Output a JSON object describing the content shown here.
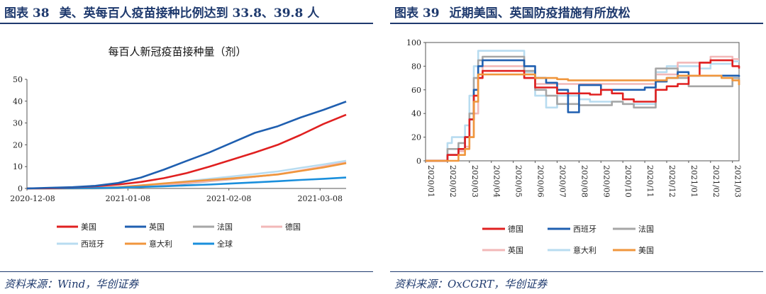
{
  "left": {
    "figure_label": "图表 38",
    "figure_title": "美、英每百人疫苗接种比例达到 33.8、39.8 人",
    "source": "资料来源：Wind，华创证券"
  },
  "right": {
    "figure_label": "图表 39",
    "figure_title": "近期美国、英国防疫措施有所放松",
    "source": "资料来源：OxCGRT，华创证券"
  },
  "chart_data": [
    {
      "type": "line",
      "title": "每百人新冠疫苗接种量（剂）",
      "xlabel": "",
      "ylabel": "",
      "x_ticks": [
        "2020-12-08",
        "2021-01-08",
        "2021-02-08",
        "2021-03-08"
      ],
      "x": [
        "2020-12-08",
        "2020-12-15",
        "2020-12-22",
        "2020-12-29",
        "2021-01-05",
        "2021-01-12",
        "2021-01-19",
        "2021-01-26",
        "2021-02-02",
        "2021-02-09",
        "2021-02-16",
        "2021-02-23",
        "2021-03-02",
        "2021-03-09",
        "2021-03-16"
      ],
      "ylim": [
        0,
        50
      ],
      "y_ticks": [
        0,
        10,
        20,
        30,
        40,
        50
      ],
      "legend": "bottom",
      "grid": false,
      "series": [
        {
          "name": "美国",
          "color": "#e02020",
          "values": [
            0.0,
            0.1,
            0.5,
            1.0,
            1.8,
            3.0,
            4.7,
            7.0,
            10.0,
            13.2,
            16.5,
            20.0,
            24.5,
            29.5,
            33.8
          ]
        },
        {
          "name": "英国",
          "color": "#1f5fb0",
          "values": [
            0.0,
            0.3,
            0.6,
            1.2,
            2.5,
            5.0,
            8.6,
            12.6,
            16.5,
            21.0,
            25.5,
            28.5,
            32.5,
            36.0,
            39.8
          ]
        },
        {
          "name": "法国",
          "color": "#a6a6a6",
          "values": [
            0.0,
            0.0,
            0.0,
            0.0,
            0.1,
            0.6,
            1.3,
            2.3,
            3.3,
            4.3,
            5.4,
            6.5,
            8.1,
            9.7,
            11.8
          ]
        },
        {
          "name": "德国",
          "color": "#f2b8b8",
          "values": [
            0.0,
            0.0,
            0.0,
            0.3,
            0.6,
            1.1,
            1.7,
            2.5,
            3.4,
            4.4,
            5.4,
            6.5,
            8.2,
            10.1,
            12.2
          ]
        },
        {
          "name": "西班牙",
          "color": "#b8dcf0",
          "values": [
            0.0,
            0.0,
            0.0,
            0.2,
            0.5,
            1.2,
            2.2,
            3.3,
            4.4,
            5.5,
            6.6,
            7.8,
            9.4,
            11.0,
            12.7
          ]
        },
        {
          "name": "意大利",
          "color": "#f0963c",
          "values": [
            0.0,
            0.0,
            0.0,
            0.1,
            0.6,
            1.4,
            2.3,
            3.1,
            3.9,
            4.6,
            5.5,
            6.4,
            8.0,
            9.6,
            11.6
          ]
        },
        {
          "name": "全球",
          "color": "#1a8fdc",
          "values": [
            0.0,
            0.05,
            0.1,
            0.2,
            0.4,
            0.7,
            1.0,
            1.4,
            1.8,
            2.3,
            2.8,
            3.3,
            3.9,
            4.4,
            5.0
          ]
        }
      ]
    },
    {
      "type": "line",
      "title": "",
      "xlabel": "",
      "ylabel": "",
      "step": true,
      "x_ticks": [
        "2020/01",
        "2020/02",
        "2020/03",
        "2020/04",
        "2020/05",
        "2020/06",
        "2020/07",
        "2020/08",
        "2020/09",
        "2020/10",
        "2020/11",
        "2020/12",
        "2021/01",
        "2021/02",
        "2021/03"
      ],
      "x": [
        0,
        0.5,
        1,
        1.2,
        1.5,
        1.8,
        2,
        2.2,
        2.4,
        2.6,
        2.8,
        3,
        3.5,
        4,
        4.5,
        5,
        5.5,
        6,
        6.5,
        7,
        7.5,
        8,
        8.5,
        9,
        9.5,
        10,
        10.5,
        11,
        11.5,
        12,
        12.5,
        13,
        13.5,
        14,
        14.3
      ],
      "ylim": [
        0,
        100
      ],
      "y_ticks": [
        0,
        20,
        40,
        60,
        80,
        100
      ],
      "legend": "bottom",
      "grid": false,
      "series": [
        {
          "name": "德国",
          "color": "#e02020",
          "values": [
            0,
            0,
            5,
            5,
            10,
            20,
            35,
            55,
            70,
            76,
            76,
            76,
            76,
            76,
            70,
            62,
            62,
            57,
            57,
            57,
            56,
            60,
            57,
            52,
            50,
            50,
            60,
            63,
            65,
            72,
            83,
            85,
            85,
            80,
            78
          ]
        },
        {
          "name": "西班牙",
          "color": "#1f5fb0",
          "values": [
            0,
            0,
            5,
            5,
            10,
            20,
            35,
            60,
            80,
            85,
            85,
            85,
            85,
            85,
            80,
            70,
            66,
            60,
            41,
            64,
            64,
            60,
            60,
            60,
            60,
            62,
            67,
            70,
            75,
            72,
            72,
            72,
            72,
            72,
            71
          ]
        },
        {
          "name": "法国",
          "color": "#a6a6a6",
          "values": [
            0,
            0,
            10,
            10,
            15,
            20,
            40,
            70,
            85,
            88,
            88,
            88,
            88,
            88,
            76,
            60,
            55,
            48,
            48,
            47,
            47,
            47,
            50,
            48,
            45,
            45,
            78,
            78,
            70,
            63,
            63,
            63,
            63,
            70,
            64
          ]
        },
        {
          "name": "英国",
          "color": "#f2b8b8",
          "values": [
            0,
            0,
            5,
            5,
            8,
            12,
            20,
            40,
            70,
            80,
            80,
            80,
            80,
            80,
            70,
            65,
            65,
            65,
            65,
            65,
            65,
            65,
            65,
            65,
            65,
            65,
            73,
            73,
            83,
            83,
            83,
            88,
            88,
            86,
            86
          ]
        },
        {
          "name": "意大利",
          "color": "#b8dcf0",
          "values": [
            0,
            0,
            15,
            20,
            20,
            30,
            55,
            80,
            93,
            93,
            93,
            93,
            93,
            93,
            75,
            55,
            45,
            55,
            55,
            52,
            50,
            50,
            50,
            48,
            48,
            48,
            75,
            80,
            80,
            80,
            78,
            82,
            82,
            84,
            84
          ]
        },
        {
          "name": "美国",
          "color": "#f0963c",
          "values": [
            0,
            0,
            0,
            0,
            5,
            10,
            20,
            50,
            73,
            73,
            73,
            73,
            73,
            73,
            73,
            70,
            70,
            69,
            68,
            68,
            68,
            68,
            68,
            68,
            68,
            68,
            68,
            70,
            72,
            72,
            72,
            72,
            70,
            68,
            64
          ]
        }
      ]
    }
  ]
}
